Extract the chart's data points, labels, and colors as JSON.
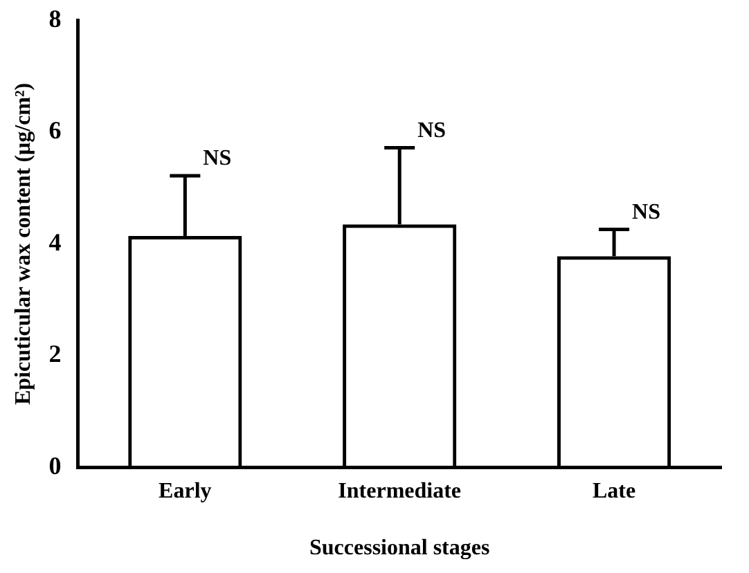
{
  "chart_data": {
    "type": "bar",
    "xlabel": "Successional stages",
    "ylabel": "Epicuticular wax content (μg/cm²)",
    "categories": [
      "Early",
      "Intermediate",
      "Late"
    ],
    "values": [
      4.14,
      4.35,
      3.78
    ],
    "errors": [
      1.08,
      1.37,
      0.48
    ],
    "color": "#000000",
    "ylim": [
      0,
      8
    ],
    "yticks": [
      0,
      2,
      4,
      6,
      8
    ],
    "grid": false,
    "legend": false,
    "annotations": [
      {
        "text": "NS",
        "x": "Early",
        "y": 5.22
      },
      {
        "text": "NS",
        "x": "Intermediate",
        "y": 5.72
      },
      {
        "text": "NS",
        "x": "Late",
        "y": 4.26
      }
    ]
  }
}
